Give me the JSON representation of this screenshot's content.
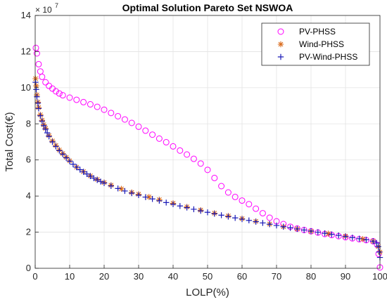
{
  "chart_data": {
    "type": "scatter",
    "title": "Optimal Solution Pareto Set NSWOA",
    "xlabel": "LOLP(%)",
    "ylabel": "Total Cost(€)",
    "y_exponent_label": "× 10",
    "y_exponent_power": "7",
    "xlim": [
      0,
      100
    ],
    "ylim": [
      0,
      14
    ],
    "xticks": [
      "0",
      "10",
      "20",
      "30",
      "40",
      "50",
      "60",
      "70",
      "80",
      "90",
      "100"
    ],
    "yticks": [
      "0",
      "2",
      "4",
      "6",
      "8",
      "10",
      "12",
      "14"
    ],
    "grid": true,
    "legend_position": "top-right",
    "series": [
      {
        "name": "PV-PHSS",
        "marker": "circle",
        "color": "#ff00ff",
        "x": [
          0.2,
          0.5,
          1,
          1.5,
          2,
          3,
          4,
          5,
          6,
          7,
          8,
          10,
          12,
          14,
          16,
          18,
          20,
          22,
          24,
          26,
          28,
          30,
          32,
          34,
          36,
          38,
          40,
          42,
          44,
          46,
          48,
          50,
          52,
          54,
          56,
          58,
          60,
          62,
          64,
          66,
          68,
          70,
          72,
          74,
          76,
          78,
          80,
          82,
          84,
          86,
          88,
          90,
          92,
          94,
          96,
          98,
          99.2,
          99.6,
          100
        ],
        "y": [
          12.2,
          11.9,
          11.3,
          10.9,
          10.6,
          10.3,
          10.1,
          9.95,
          9.8,
          9.68,
          9.58,
          9.45,
          9.33,
          9.2,
          9.08,
          8.94,
          8.78,
          8.6,
          8.42,
          8.24,
          8.05,
          7.84,
          7.62,
          7.4,
          7.18,
          6.98,
          6.75,
          6.52,
          6.3,
          6.06,
          5.8,
          5.45,
          5.0,
          4.55,
          4.2,
          3.95,
          3.75,
          3.55,
          3.3,
          3.05,
          2.8,
          2.6,
          2.45,
          2.3,
          2.2,
          2.12,
          2.05,
          1.98,
          1.9,
          1.84,
          1.78,
          1.72,
          1.66,
          1.61,
          1.56,
          1.5,
          1.3,
          0.8,
          0.05
        ]
      },
      {
        "name": "Wind-PHSS",
        "marker": "star",
        "color": "#d96a1b",
        "x": [
          0.1,
          0.3,
          0.5,
          0.8,
          1,
          1.5,
          2,
          2.5,
          3,
          4,
          5,
          6,
          7,
          8,
          9,
          10,
          12,
          14,
          16,
          18,
          20,
          22,
          25,
          28,
          30,
          33,
          36,
          40,
          44,
          48,
          52,
          56,
          60,
          64,
          68,
          72,
          76,
          80,
          85,
          90,
          95,
          98,
          99.5,
          100
        ],
        "y": [
          10.5,
          10.1,
          9.6,
          9.2,
          8.9,
          8.5,
          8.2,
          7.95,
          7.75,
          7.35,
          7.05,
          6.8,
          6.55,
          6.35,
          6.15,
          5.95,
          5.6,
          5.35,
          5.12,
          4.92,
          4.75,
          4.6,
          4.4,
          4.2,
          4.1,
          3.95,
          3.8,
          3.6,
          3.4,
          3.22,
          3.05,
          2.9,
          2.75,
          2.6,
          2.45,
          2.3,
          2.18,
          2.05,
          1.92,
          1.78,
          1.62,
          1.5,
          1.2,
          0.9
        ]
      },
      {
        "name": "PV-Wind-PHSS",
        "marker": "plus",
        "color": "#1a1ab8",
        "x": [
          0.1,
          0.3,
          0.5,
          0.8,
          1,
          1.5,
          2,
          2.5,
          3,
          3.5,
          4,
          5,
          6,
          7,
          8,
          9,
          10,
          11,
          12,
          13,
          14,
          15,
          16,
          17,
          18,
          19,
          20,
          22,
          24,
          26,
          28,
          30,
          32,
          34,
          36,
          38,
          40,
          42,
          44,
          46,
          48,
          50,
          52,
          54,
          56,
          58,
          60,
          62,
          64,
          66,
          68,
          70,
          72,
          74,
          76,
          78,
          80,
          82,
          84,
          86,
          88,
          90,
          92,
          94,
          96,
          98,
          99,
          99.5,
          99.8,
          100
        ],
        "y": [
          10.3,
          9.9,
          9.5,
          9.15,
          8.85,
          8.45,
          8.15,
          7.9,
          7.7,
          7.5,
          7.3,
          7.0,
          6.75,
          6.52,
          6.32,
          6.12,
          5.93,
          5.76,
          5.6,
          5.46,
          5.34,
          5.22,
          5.1,
          4.99,
          4.89,
          4.8,
          4.72,
          4.56,
          4.42,
          4.28,
          4.16,
          4.05,
          3.94,
          3.84,
          3.74,
          3.64,
          3.55,
          3.45,
          3.36,
          3.27,
          3.18,
          3.1,
          3.02,
          2.94,
          2.86,
          2.79,
          2.72,
          2.65,
          2.58,
          2.51,
          2.44,
          2.37,
          2.3,
          2.24,
          2.18,
          2.12,
          2.06,
          2.0,
          1.94,
          1.88,
          1.82,
          1.76,
          1.7,
          1.64,
          1.58,
          1.5,
          1.4,
          1.2,
          0.9,
          0.6
        ]
      }
    ]
  }
}
